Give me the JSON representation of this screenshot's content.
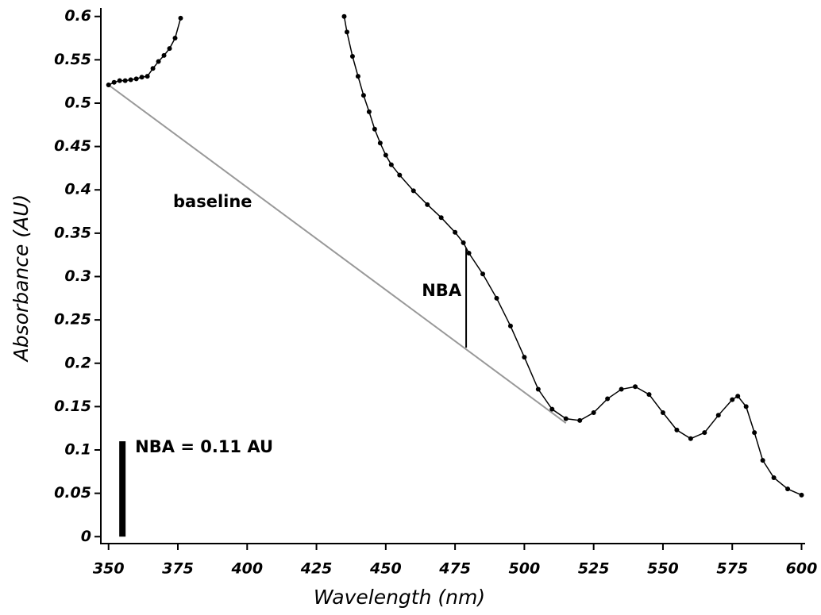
{
  "chart_data": {
    "type": "line",
    "markers": true,
    "xlabel": "Wavelength (nm)",
    "ylabel": "Absorbance (AU)",
    "xlim": [
      347.5,
      601
    ],
    "ylim": [
      -0.008,
      0.608
    ],
    "xticks": [
      350,
      375,
      400,
      425,
      450,
      475,
      500,
      525,
      550,
      575,
      600
    ],
    "yticks": [
      0,
      0.05,
      0.1,
      0.15,
      0.2,
      0.25,
      0.3,
      0.35,
      0.4,
      0.45,
      0.5,
      0.55,
      0.6
    ],
    "series": [
      {
        "color": "#000000",
        "x": [
          350,
          352,
          354,
          356,
          358,
          360,
          362,
          364,
          366,
          368,
          370,
          372,
          374,
          376,
          378,
          435,
          436,
          438,
          440,
          442,
          444,
          446,
          448,
          450,
          452,
          455,
          460,
          465,
          470,
          475,
          478,
          480,
          485,
          490,
          495,
          500,
          505,
          510,
          515,
          520,
          525,
          530,
          535,
          540,
          545,
          550,
          555,
          560,
          565,
          570,
          575,
          577,
          580,
          583,
          586,
          590,
          595,
          600
        ],
        "values": [
          0.521,
          0.524,
          0.526,
          0.526,
          0.527,
          0.528,
          0.53,
          0.531,
          0.54,
          0.548,
          0.555,
          0.563,
          0.575,
          0.598,
          null,
          0.6,
          0.582,
          0.554,
          0.531,
          0.509,
          0.49,
          0.47,
          0.454,
          0.44,
          0.429,
          0.417,
          0.399,
          0.383,
          0.368,
          0.351,
          0.339,
          0.327,
          0.303,
          0.275,
          0.243,
          0.207,
          0.17,
          0.147,
          0.136,
          0.134,
          0.143,
          0.159,
          0.17,
          0.173,
          0.164,
          0.143,
          0.123,
          0.113,
          0.12,
          0.14,
          0.158,
          0.162,
          0.15,
          0.12,
          0.088,
          0.068,
          0.055,
          0.048
        ]
      }
    ],
    "baseline": {
      "label": "baseline",
      "color": "#999999",
      "x": [
        350,
        515
      ],
      "y": [
        0.521,
        0.131
      ]
    },
    "nba_line": {
      "label": "NBA",
      "x": 479,
      "y": [
        0.218,
        0.333
      ]
    },
    "nba_bar": {
      "label": "NBA = 0.11 AU",
      "x": 355,
      "value": 0.11
    }
  }
}
